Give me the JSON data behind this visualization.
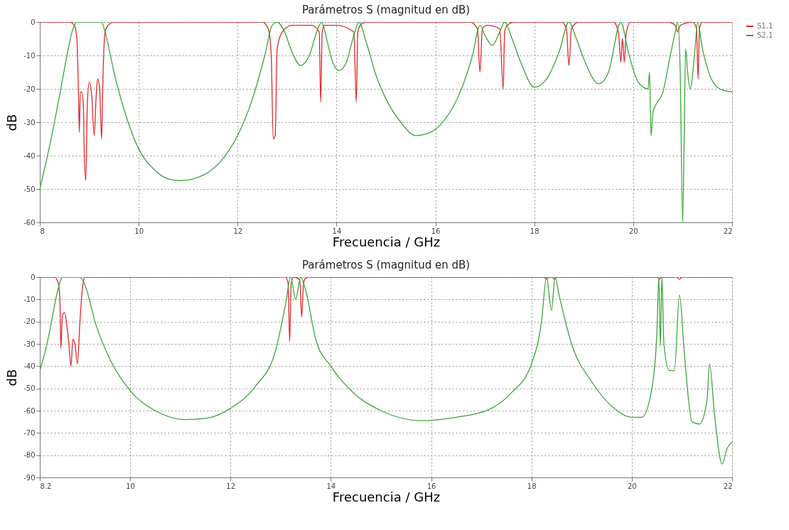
{
  "chart_data": [
    {
      "type": "line",
      "title": "Parámetros S (magnitud en dB)",
      "xlabel": "Frecuencia / GHz",
      "ylabel": "dB",
      "xlim": [
        8,
        22
      ],
      "xticks": [
        8,
        10,
        12,
        14,
        16,
        18,
        20,
        22
      ],
      "ylim": [
        -60,
        0
      ],
      "yticks": [
        -60,
        -50,
        -40,
        -30,
        -20,
        -10,
        0
      ],
      "grid": true,
      "legend": "top right",
      "line_style": "solid",
      "series": [
        {
          "name": "S1,1",
          "color": "#e0262b",
          "x": [
            8,
            8.6,
            8.7,
            8.75,
            8.78,
            8.8,
            8.82,
            8.85,
            8.88,
            8.9,
            8.93,
            8.96,
            9.0,
            9.05,
            9.1,
            9.14,
            9.17,
            9.21,
            9.25,
            9.28,
            9.32,
            9.38,
            9.5,
            12.5,
            12.62,
            12.68,
            12.72,
            12.76,
            12.8,
            12.9,
            13.1,
            13.5,
            13.65,
            13.68,
            13.71,
            13.75,
            14.0,
            14.35,
            14.4,
            14.43,
            14.48,
            14.6,
            16.7,
            16.85,
            16.9,
            16.95,
            17.05,
            17.3,
            17.37,
            17.4,
            17.45,
            17.6,
            18.55,
            18.65,
            18.7,
            18.75,
            18.9,
            19.6,
            19.7,
            19.75,
            19.78,
            19.82,
            19.86,
            19.95,
            20.7,
            20.85,
            20.9,
            20.95,
            21.2,
            21.28,
            21.31,
            21.34,
            21.4,
            21.6,
            22
          ],
          "values": [
            0,
            0,
            -1,
            -5,
            -20,
            -33,
            -21,
            -21,
            -25,
            -40,
            -47.5,
            -25,
            -18,
            -22,
            -34,
            -22,
            -17,
            -20,
            -35,
            -15,
            -3,
            -1,
            0,
            0,
            -2,
            -10,
            -35,
            -34,
            -8,
            -3,
            -1,
            -1,
            -3,
            -24,
            -3,
            -1,
            -1,
            -3,
            -24,
            -3,
            -1,
            0,
            0,
            -2,
            -15,
            -2,
            -1,
            -2,
            -20,
            -3,
            -1,
            0,
            0,
            -2,
            -13,
            -2,
            0,
            0,
            -3,
            -12,
            -5,
            -12,
            -3,
            0,
            0,
            -1,
            -3,
            -1,
            0,
            -2,
            -17,
            -2,
            0,
            0,
            0
          ]
        },
        {
          "name": "S2,1",
          "color": "#3aa63a",
          "x": [
            8,
            8.2,
            8.4,
            8.55,
            8.65,
            8.75,
            8.85,
            9.0,
            9.25,
            9.32,
            9.4,
            9.5,
            9.7,
            10.0,
            10.3,
            10.6,
            10.85,
            11.1,
            11.5,
            11.8,
            12.0,
            12.3,
            12.55,
            12.7,
            12.8,
            12.95,
            13.1,
            13.27,
            13.45,
            13.6,
            13.7,
            13.8,
            13.9,
            14.05,
            14.2,
            14.35,
            14.45,
            14.6,
            14.8,
            15.0,
            15.3,
            15.6,
            15.9,
            16.2,
            16.5,
            16.75,
            16.9,
            17.0,
            17.15,
            17.3,
            17.4,
            17.55,
            17.75,
            18.0,
            18.25,
            18.5,
            18.7,
            18.85,
            19.0,
            19.3,
            19.5,
            19.75,
            19.9,
            20.1,
            20.3,
            20.33,
            20.36,
            20.4,
            20.45,
            20.6,
            20.75,
            20.85,
            20.9,
            20.95,
            21.0,
            21.03,
            21.06,
            21.1,
            21.15,
            21.25,
            21.3,
            21.4,
            21.55,
            21.75,
            22
          ],
          "values": [
            -50,
            -37,
            -22,
            -10,
            -3,
            0,
            0,
            0,
            0,
            -3,
            -8,
            -15,
            -26,
            -38,
            -44,
            -47,
            -47.5,
            -47,
            -44,
            -39,
            -34,
            -23,
            -10,
            -1,
            0,
            -3,
            -9,
            -13,
            -10,
            -3,
            0,
            -5,
            -11,
            -14.5,
            -12,
            -4,
            0,
            -6,
            -16,
            -23,
            -30,
            -34,
            -33,
            -29,
            -21,
            -10,
            -1,
            -4,
            -7,
            -3,
            0,
            -5,
            -13,
            -19.5,
            -17,
            -9,
            0,
            -5,
            -11,
            -18.5,
            -15,
            0,
            -9,
            -18,
            -20,
            -15,
            -34,
            -27,
            -25,
            -21,
            -10,
            -3,
            0,
            -15,
            -60,
            -35,
            -8,
            -15,
            -20,
            -8,
            0,
            -8,
            -16,
            -20,
            -21
          ]
        }
      ]
    },
    {
      "type": "line",
      "title": "Parámetros S (magnitud en dB)",
      "xlabel": "Frecuencia / GHz",
      "ylabel": "dB",
      "xlim": [
        8.2,
        22
      ],
      "xticks": [
        8.2,
        10,
        12,
        14,
        16,
        18,
        20,
        22
      ],
      "ylim": [
        -90,
        0
      ],
      "yticks": [
        -90,
        -80,
        -70,
        -60,
        -50,
        -40,
        -30,
        -20,
        -10,
        0
      ],
      "grid": true,
      "legend": "top right",
      "line_style": "solid",
      "series": [
        {
          "name": "S1,1",
          "color": "#e0262b",
          "x": [
            8.2,
            8.5,
            8.57,
            8.6,
            8.62,
            8.65,
            8.7,
            8.74,
            8.78,
            8.82,
            8.86,
            8.9,
            8.95,
            9.0,
            9.05,
            9.1,
            9.2,
            13.1,
            13.15,
            13.18,
            13.21,
            13.25,
            13.38,
            13.42,
            13.45,
            13.48,
            13.55,
            18.25,
            18.3,
            18.35,
            18.42,
            18.46,
            18.5,
            20.5,
            20.55,
            20.6,
            20.9,
            20.95,
            21.0,
            22
          ],
          "values": [
            0,
            0,
            -3,
            -10,
            -32,
            -17,
            -16,
            -22,
            -30,
            -40,
            -28,
            -30,
            -39,
            -20,
            -5,
            0,
            0,
            0,
            -3,
            -29,
            -3,
            0,
            -1,
            -18,
            -5,
            -1,
            0,
            0,
            -1,
            0,
            0,
            -1,
            0,
            0,
            -1,
            0,
            0,
            -1,
            0,
            0
          ]
        },
        {
          "name": "S2,1",
          "color": "#3aa63a",
          "x": [
            8.2,
            8.3,
            8.4,
            8.5,
            8.58,
            8.65,
            8.75,
            9.0,
            9.07,
            9.15,
            9.3,
            9.6,
            10.0,
            10.5,
            11.1,
            11.5,
            12.0,
            12.5,
            12.9,
            13.1,
            13.2,
            13.3,
            13.4,
            13.5,
            13.7,
            14.0,
            14.5,
            15.0,
            15.8,
            16.5,
            17.2,
            17.6,
            18.0,
            18.2,
            18.3,
            18.4,
            18.47,
            18.55,
            18.8,
            19.2,
            19.6,
            20.0,
            20.2,
            20.4,
            20.5,
            20.54,
            20.57,
            20.6,
            20.64,
            20.75,
            20.85,
            20.95,
            21.05,
            21.2,
            21.35,
            21.5,
            21.55,
            21.65,
            21.8,
            21.9,
            22
          ],
          "values": [
            -42,
            -34,
            -24,
            -12,
            -4,
            0,
            0,
            0,
            -2,
            -7,
            -20,
            -37,
            -51,
            -60,
            -64,
            -63.5,
            -59,
            -49,
            -33,
            -12,
            0,
            -10,
            0,
            -6,
            -28,
            -40,
            -53,
            -60,
            -64.5,
            -63,
            -59,
            -52,
            -39,
            -20,
            0,
            -15,
            0,
            -8,
            -30,
            -47,
            -58,
            -63,
            -63,
            -50,
            -25,
            0,
            -31,
            0,
            -30,
            -42,
            -42,
            -8,
            -35,
            -65,
            -66,
            -55,
            -39,
            -62,
            -84,
            -77,
            -74
          ]
        }
      ]
    }
  ]
}
